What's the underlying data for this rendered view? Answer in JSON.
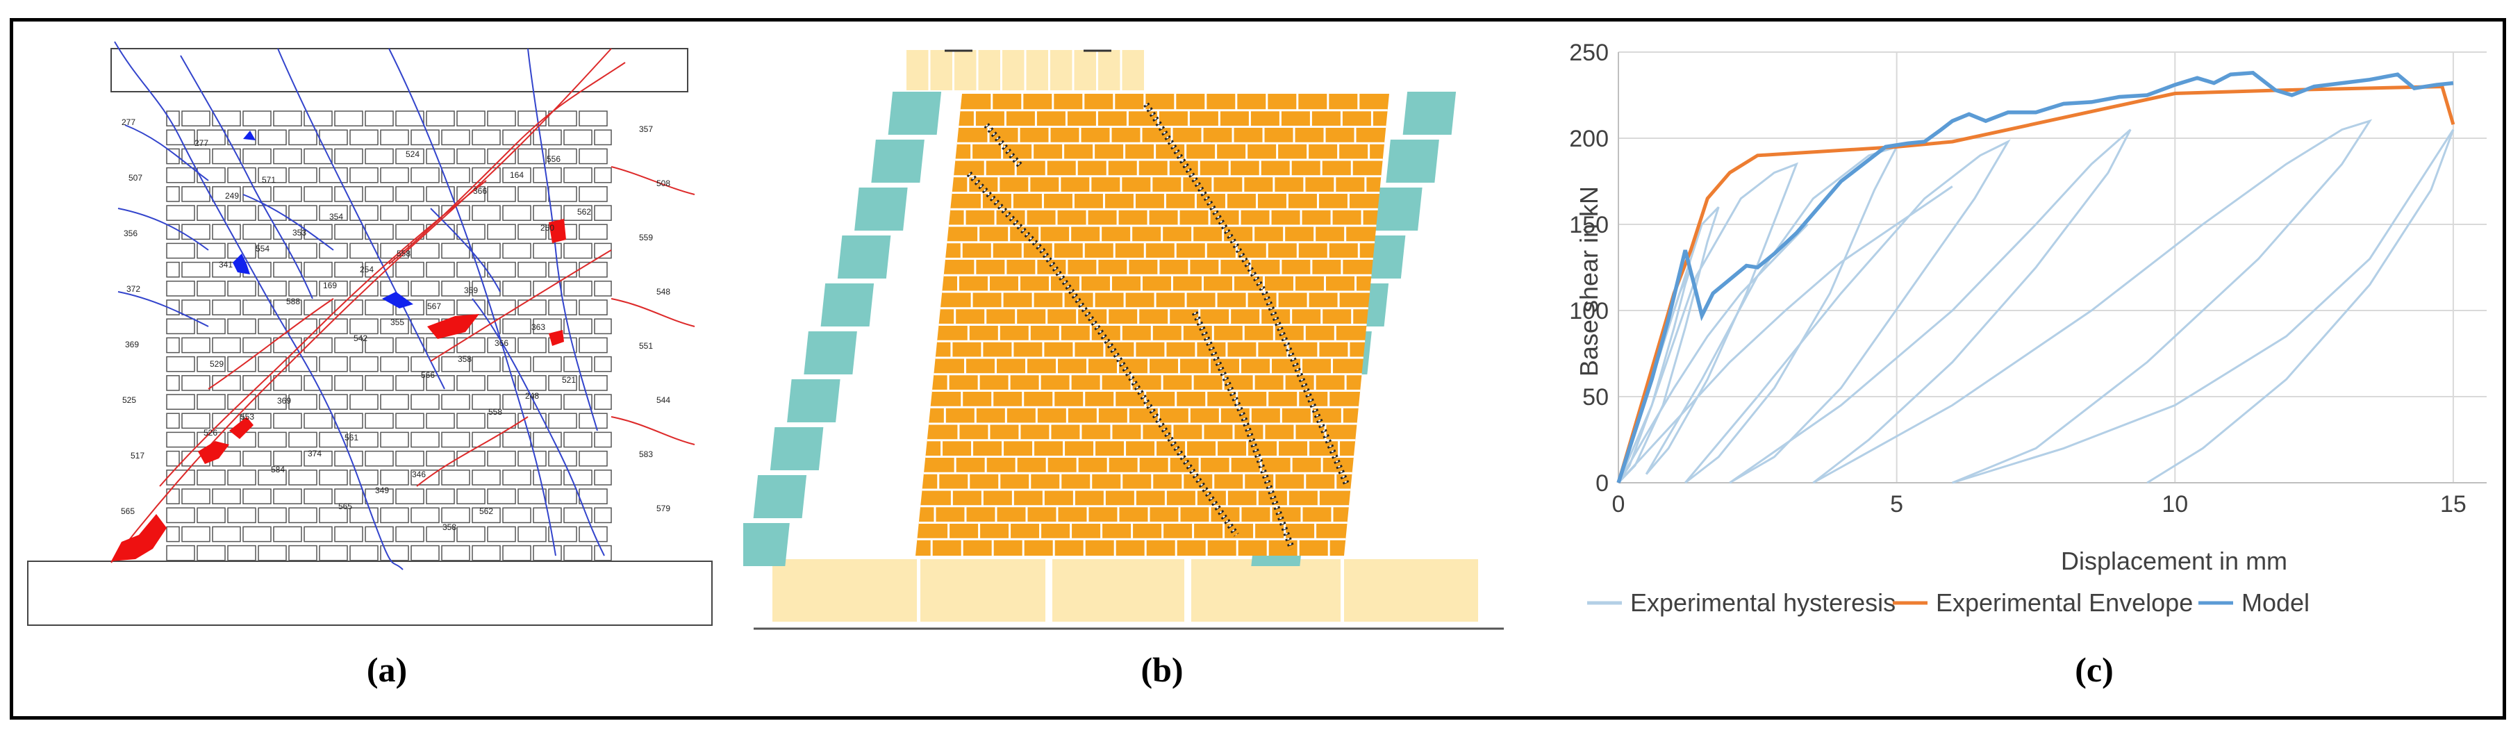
{
  "captions": {
    "a": "(a)",
    "b": "(b)",
    "c": "(c)"
  },
  "panel_a": {
    "crack_labels": [
      "277",
      "507",
      "356",
      "372",
      "369",
      "525",
      "517",
      "565",
      "357",
      "508",
      "559",
      "548",
      "551",
      "544",
      "583",
      "579",
      "277",
      "571",
      "354",
      "558",
      "359",
      "363",
      "529",
      "369",
      "561",
      "346",
      "562",
      "556",
      "249",
      "353",
      "254",
      "567",
      "366",
      "521",
      "553",
      "374",
      "349",
      "358",
      "164",
      "562",
      "554",
      "169",
      "355",
      "358",
      "248",
      "526",
      "584",
      "565",
      "524",
      "366",
      "250",
      "341",
      "588",
      "542",
      "566",
      "558"
    ]
  },
  "chart_data": {
    "type": "line",
    "xlabel": "Displacement in mm",
    "ylabel": "Base shear in kN",
    "xlim": [
      0,
      15.6
    ],
    "ylim": [
      0,
      250
    ],
    "x_ticks": [
      0,
      5,
      10,
      15
    ],
    "y_ticks": [
      0,
      50,
      100,
      150,
      200,
      250
    ],
    "grid": true,
    "legend_position": "bottom",
    "colors": {
      "hysteresis": "#b3cfe6",
      "envelope": "#ed7d31",
      "model": "#5b9bd5"
    },
    "series": [
      {
        "name": "Experimental hysteresis",
        "role": "hysteresis",
        "loops": [
          [
            [
              0,
              0
            ],
            [
              0.4,
              40
            ],
            [
              0.8,
              80
            ],
            [
              1.1,
              110
            ],
            [
              1.3,
              125
            ],
            [
              1.2,
              115
            ],
            [
              1.0,
              90
            ],
            [
              0.6,
              45
            ],
            [
              0.2,
              10
            ],
            [
              0,
              0
            ]
          ],
          [
            [
              0,
              0
            ],
            [
              0.5,
              50
            ],
            [
              1.0,
              100
            ],
            [
              1.5,
              150
            ],
            [
              1.8,
              160
            ],
            [
              1.6,
              140
            ],
            [
              1.2,
              90
            ],
            [
              0.8,
              45
            ],
            [
              0.3,
              10
            ],
            [
              0,
              0
            ]
          ],
          [
            [
              0,
              0
            ],
            [
              0.6,
              45
            ],
            [
              1.4,
              120
            ],
            [
              2.2,
              165
            ],
            [
              2.8,
              180
            ],
            [
              3.2,
              185
            ],
            [
              2.9,
              160
            ],
            [
              2.3,
              110
            ],
            [
              1.6,
              60
            ],
            [
              0.9,
              20
            ],
            [
              0.5,
              5
            ]
          ],
          [
            [
              0.5,
              5
            ],
            [
              1.5,
              60
            ],
            [
              2.5,
              120
            ],
            [
              3.5,
              165
            ],
            [
              4.5,
              190
            ],
            [
              5.0,
              195
            ],
            [
              4.6,
              170
            ],
            [
              3.8,
              110
            ],
            [
              2.8,
              55
            ],
            [
              1.8,
              15
            ],
            [
              1.2,
              0
            ]
          ],
          [
            [
              1.2,
              0
            ],
            [
              2.5,
              50
            ],
            [
              4.0,
              110
            ],
            [
              5.5,
              165
            ],
            [
              6.5,
              190
            ],
            [
              7.0,
              198
            ],
            [
              6.4,
              165
            ],
            [
              5.2,
              110
            ],
            [
              4.0,
              55
            ],
            [
              2.8,
              15
            ],
            [
              2.0,
              0
            ]
          ],
          [
            [
              2.0,
              0
            ],
            [
              4.0,
              45
            ],
            [
              6.0,
              100
            ],
            [
              7.5,
              150
            ],
            [
              8.5,
              185
            ],
            [
              9.2,
              205
            ],
            [
              8.8,
              180
            ],
            [
              7.5,
              125
            ],
            [
              6.0,
              70
            ],
            [
              4.5,
              25
            ],
            [
              3.5,
              0
            ]
          ],
          [
            [
              3.5,
              0
            ],
            [
              6.0,
              45
            ],
            [
              8.5,
              100
            ],
            [
              10.5,
              150
            ],
            [
              12.0,
              185
            ],
            [
              13.0,
              205
            ],
            [
              13.5,
              210
            ],
            [
              13.0,
              185
            ],
            [
              11.5,
              130
            ],
            [
              9.5,
              70
            ],
            [
              7.5,
              20
            ],
            [
              6.0,
              0
            ]
          ],
          [
            [
              6.0,
              0
            ],
            [
              8.0,
              20
            ],
            [
              10.0,
              45
            ],
            [
              12.0,
              85
            ],
            [
              13.5,
              130
            ],
            [
              14.5,
              180
            ],
            [
              15.0,
              205
            ],
            [
              14.6,
              170
            ],
            [
              13.5,
              115
            ],
            [
              12.0,
              60
            ],
            [
              10.5,
              20
            ],
            [
              9.5,
              0
            ]
          ],
          [
            [
              0,
              0
            ],
            [
              0.5,
              28
            ],
            [
              1.0,
              55
            ],
            [
              1.6,
              85
            ],
            [
              2.2,
              110
            ],
            [
              2.8,
              130
            ],
            [
              3.4,
              150
            ]
          ],
          [
            [
              0,
              0
            ],
            [
              1.0,
              35
            ],
            [
              2.0,
              70
            ],
            [
              3.0,
              100
            ],
            [
              4.0,
              128
            ],
            [
              5.0,
              150
            ],
            [
              6.0,
              172
            ]
          ]
        ]
      },
      {
        "name": "Experimental Envelope",
        "role": "envelope",
        "points": [
          [
            0,
            0
          ],
          [
            0.5,
            55
          ],
          [
            1.0,
            110
          ],
          [
            1.3,
            135
          ],
          [
            1.6,
            165
          ],
          [
            2.0,
            180
          ],
          [
            2.5,
            190
          ],
          [
            5.0,
            195
          ],
          [
            6.0,
            198
          ],
          [
            10.0,
            226
          ],
          [
            12.0,
            228
          ],
          [
            14.8,
            230
          ],
          [
            15.0,
            208
          ]
        ]
      },
      {
        "name": "Model",
        "role": "model",
        "points": [
          [
            0,
            0
          ],
          [
            0.3,
            30
          ],
          [
            0.6,
            60
          ],
          [
            0.9,
            95
          ],
          [
            1.2,
            135
          ],
          [
            1.4,
            110
          ],
          [
            1.5,
            97
          ],
          [
            1.7,
            110
          ],
          [
            2.0,
            118
          ],
          [
            2.3,
            126
          ],
          [
            2.5,
            125
          ],
          [
            2.8,
            133
          ],
          [
            3.2,
            145
          ],
          [
            3.6,
            160
          ],
          [
            4.0,
            175
          ],
          [
            4.4,
            185
          ],
          [
            4.8,
            195
          ],
          [
            5.2,
            197
          ],
          [
            5.5,
            198
          ],
          [
            5.8,
            205
          ],
          [
            6.0,
            210
          ],
          [
            6.3,
            214
          ],
          [
            6.6,
            210
          ],
          [
            7.0,
            215
          ],
          [
            7.5,
            215
          ],
          [
            8.0,
            220
          ],
          [
            8.5,
            221
          ],
          [
            9.0,
            224
          ],
          [
            9.5,
            225
          ],
          [
            10.0,
            231
          ],
          [
            10.4,
            235
          ],
          [
            10.7,
            232
          ],
          [
            11.0,
            237
          ],
          [
            11.4,
            238
          ],
          [
            11.8,
            228
          ],
          [
            12.1,
            225
          ],
          [
            12.5,
            230
          ],
          [
            13.0,
            232
          ],
          [
            13.5,
            234
          ],
          [
            14.0,
            237
          ],
          [
            14.3,
            229
          ],
          [
            14.7,
            231
          ],
          [
            15.0,
            232
          ]
        ]
      }
    ]
  }
}
